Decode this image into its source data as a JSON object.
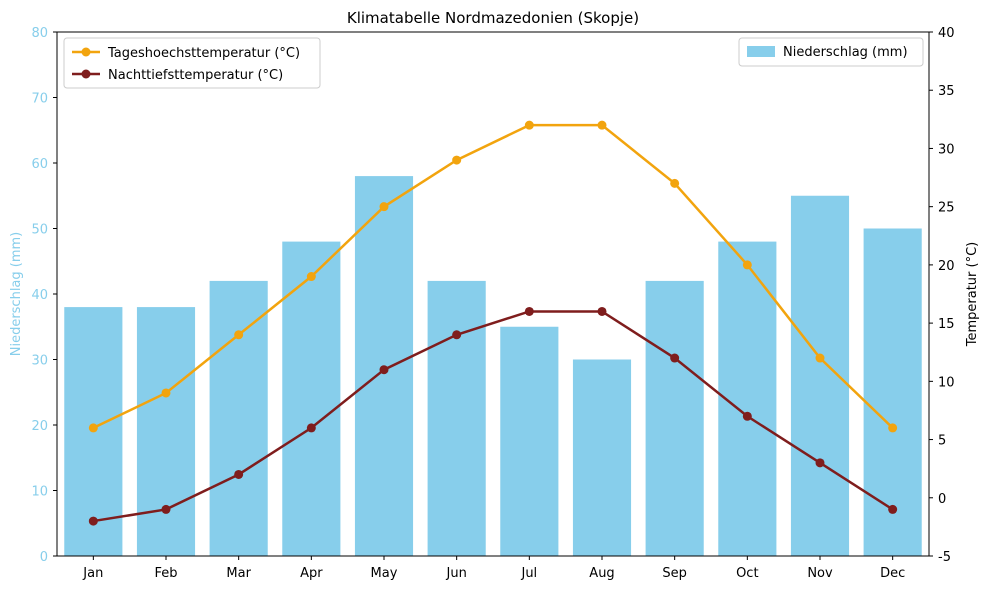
{
  "chart_data": {
    "type": "bar",
    "title": "Klimatabelle Nordmazedonien (Skopje)",
    "categories": [
      "Jan",
      "Feb",
      "Mar",
      "Apr",
      "May",
      "Jun",
      "Jul",
      "Aug",
      "Sep",
      "Oct",
      "Nov",
      "Dec"
    ],
    "bar_series": {
      "name": "Niederschlag (mm)",
      "values": [
        38,
        38,
        42,
        48,
        58,
        42,
        35,
        30,
        42,
        48,
        55,
        50
      ],
      "color": "#87CEEB"
    },
    "line_series": [
      {
        "name": "Tageshoechsttemperatur (°C)",
        "values": [
          6,
          9,
          14,
          19,
          25,
          29,
          32,
          32,
          27,
          20,
          12,
          6
        ],
        "color": "#F2A40E"
      },
      {
        "name": "Nachttiefsttemperatur (°C)",
        "values": [
          -2,
          -1,
          2,
          6,
          11,
          14,
          16,
          16,
          12,
          7,
          3,
          -1
        ],
        "color": "#7F1D1D"
      }
    ],
    "y_left": {
      "label": "Niederschlag (mm)",
      "range": [
        0,
        80
      ],
      "ticks": [
        0,
        10,
        20,
        30,
        40,
        50,
        60,
        70,
        80
      ],
      "color": "#87CEEB"
    },
    "y_right": {
      "label": "Temperatur (°C)",
      "range": [
        -5,
        40
      ],
      "ticks": [
        -5,
        0,
        5,
        10,
        15,
        20,
        25,
        30,
        35,
        40
      ]
    },
    "legend_lines_placement": "top-left",
    "legend_bars_placement": "top-right",
    "grid": false
  }
}
